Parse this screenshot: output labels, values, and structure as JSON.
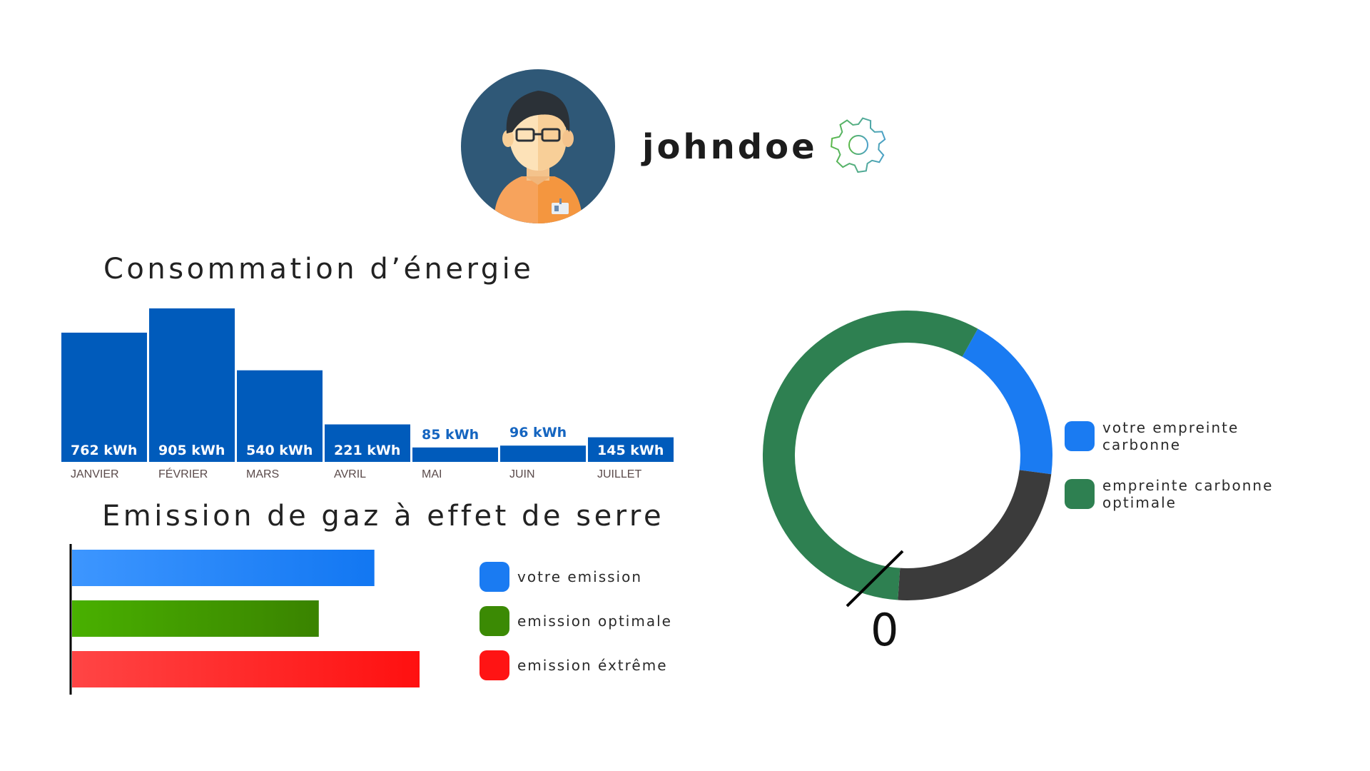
{
  "profile": {
    "username": "johndoe",
    "avatar_icon": "user-avatar-icon",
    "settings_icon": "gear-icon"
  },
  "energy": {
    "title": "Consommation d’énergie"
  },
  "ghg": {
    "title": "Emission de gaz à effet de serre"
  },
  "chart_data": [
    {
      "type": "bar",
      "title": "Consommation d’énergie",
      "categories": [
        "JANVIER",
        "FÉVRIER",
        "MARS",
        "AVRIL",
        "MAI",
        "JUIN",
        "JUILLET"
      ],
      "values": [
        762,
        905,
        540,
        221,
        85,
        96,
        145
      ],
      "labels": [
        "762 kWh",
        "905 kWh",
        "540 kWh",
        "221 kWh",
        "85 kWh",
        "96 kWh",
        "145 kWh"
      ],
      "unit": "kWh",
      "color": "#005bbb",
      "grid": false
    },
    {
      "type": "bar",
      "orientation": "horizontal",
      "title": "Emission de gaz à effet de serre",
      "series": [
        {
          "name": "votre emission",
          "value": 0.87,
          "colors": [
            "#3d96ff",
            "#1277f2"
          ]
        },
        {
          "name": "emission optimale",
          "value": 0.71,
          "colors": [
            "#49b000",
            "#3a8300"
          ]
        },
        {
          "name": "emission éxtrême",
          "value": 1.0,
          "colors": [
            "#ff4545",
            "#ff1010"
          ]
        }
      ],
      "legend": [
        {
          "label": "votre emission",
          "color": "#1a7bf2"
        },
        {
          "label": "emission optimale",
          "color": "#3b8a04"
        },
        {
          "label": "emission éxtrême",
          "color": "#ff1414"
        }
      ],
      "grid": false
    },
    {
      "type": "pie",
      "variant": "donut",
      "slices": [
        {
          "name": "votre empreinte carbonne",
          "value": 0.19,
          "color": "#1a7bf2"
        },
        {
          "name": "",
          "value": 0.24,
          "color": "#3b3b3b"
        },
        {
          "name": "empreinte carbonne optimale",
          "value": 0.57,
          "color": "#2e8051"
        }
      ],
      "gauge_label": "0",
      "legend": [
        {
          "label": "votre empreinte carbonne",
          "color": "#1a7bf2"
        },
        {
          "label": "empreinte carbonne optimale",
          "color": "#2e8051"
        }
      ],
      "legend_position": "right"
    }
  ]
}
